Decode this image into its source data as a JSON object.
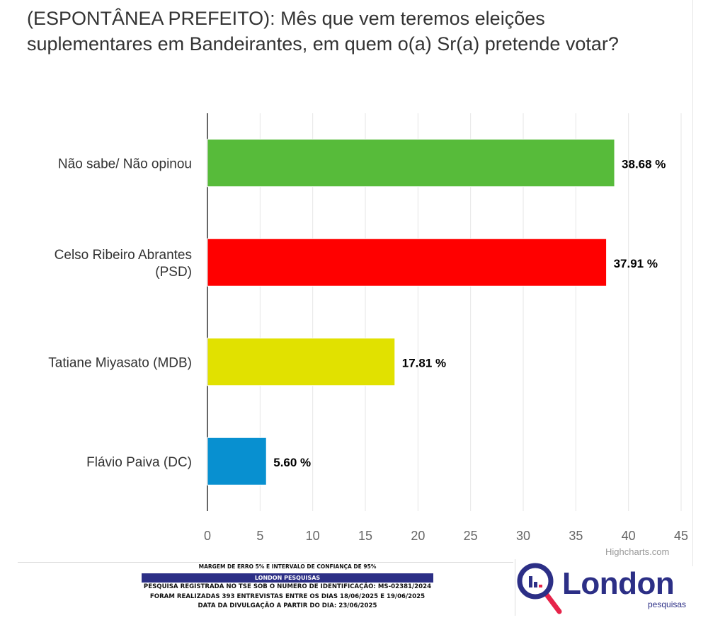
{
  "chart_data": {
    "type": "bar",
    "orientation": "horizontal",
    "title": "(ESPONTÂNEA PREFEITO): Mês que vem teremos eleições suplementares em Bandeirantes, em quem o(a) Sr(a) pretende votar?",
    "categories": [
      [
        "Não sabe/ Não opinou"
      ],
      [
        "Celso Ribeiro Abrantes",
        "(PSD)"
      ],
      [
        "Tatiane Miyasato (MDB)"
      ],
      [
        "Flávio Paiva (DC)"
      ]
    ],
    "values": [
      38.68,
      37.91,
      17.81,
      5.6
    ],
    "data_labels": [
      "38.68 %",
      "37.91 %",
      "17.81 %",
      "5.60 %"
    ],
    "colors": [
      "#57bb3a",
      "#ff0000",
      "#e1e100",
      "#0890d0"
    ],
    "xlim": [
      0,
      45
    ],
    "ticks": [
      0,
      5,
      10,
      15,
      20,
      25,
      30,
      35,
      40,
      45
    ],
    "grid": true,
    "xlabel": "",
    "ylabel": ""
  },
  "credits": "Highcharts.com",
  "footer": {
    "margin": "MARGEM DE ERRO 5% E INTERVALO DE CONFIANÇA DE 95%",
    "company": "LONDON PESQUISAS",
    "registration": "PESQUISA REGISTRADA NO TSE SOB O NUMERO DE IDENTIFICAÇÃO: MS-02381/2024",
    "interviews": "FORAM REALIZADAS 393 ENTREVISTAS ENTRE OS DIAS 18/06/2025 E 19/06/2025",
    "release": "DATA DA DIVULGAÇÃO A PARTIR DO DIA: 23/06/2025"
  },
  "logo": {
    "word": "London",
    "sub": "pesquisas",
    "color": "#2c2f86",
    "accent": "#e6244a"
  }
}
